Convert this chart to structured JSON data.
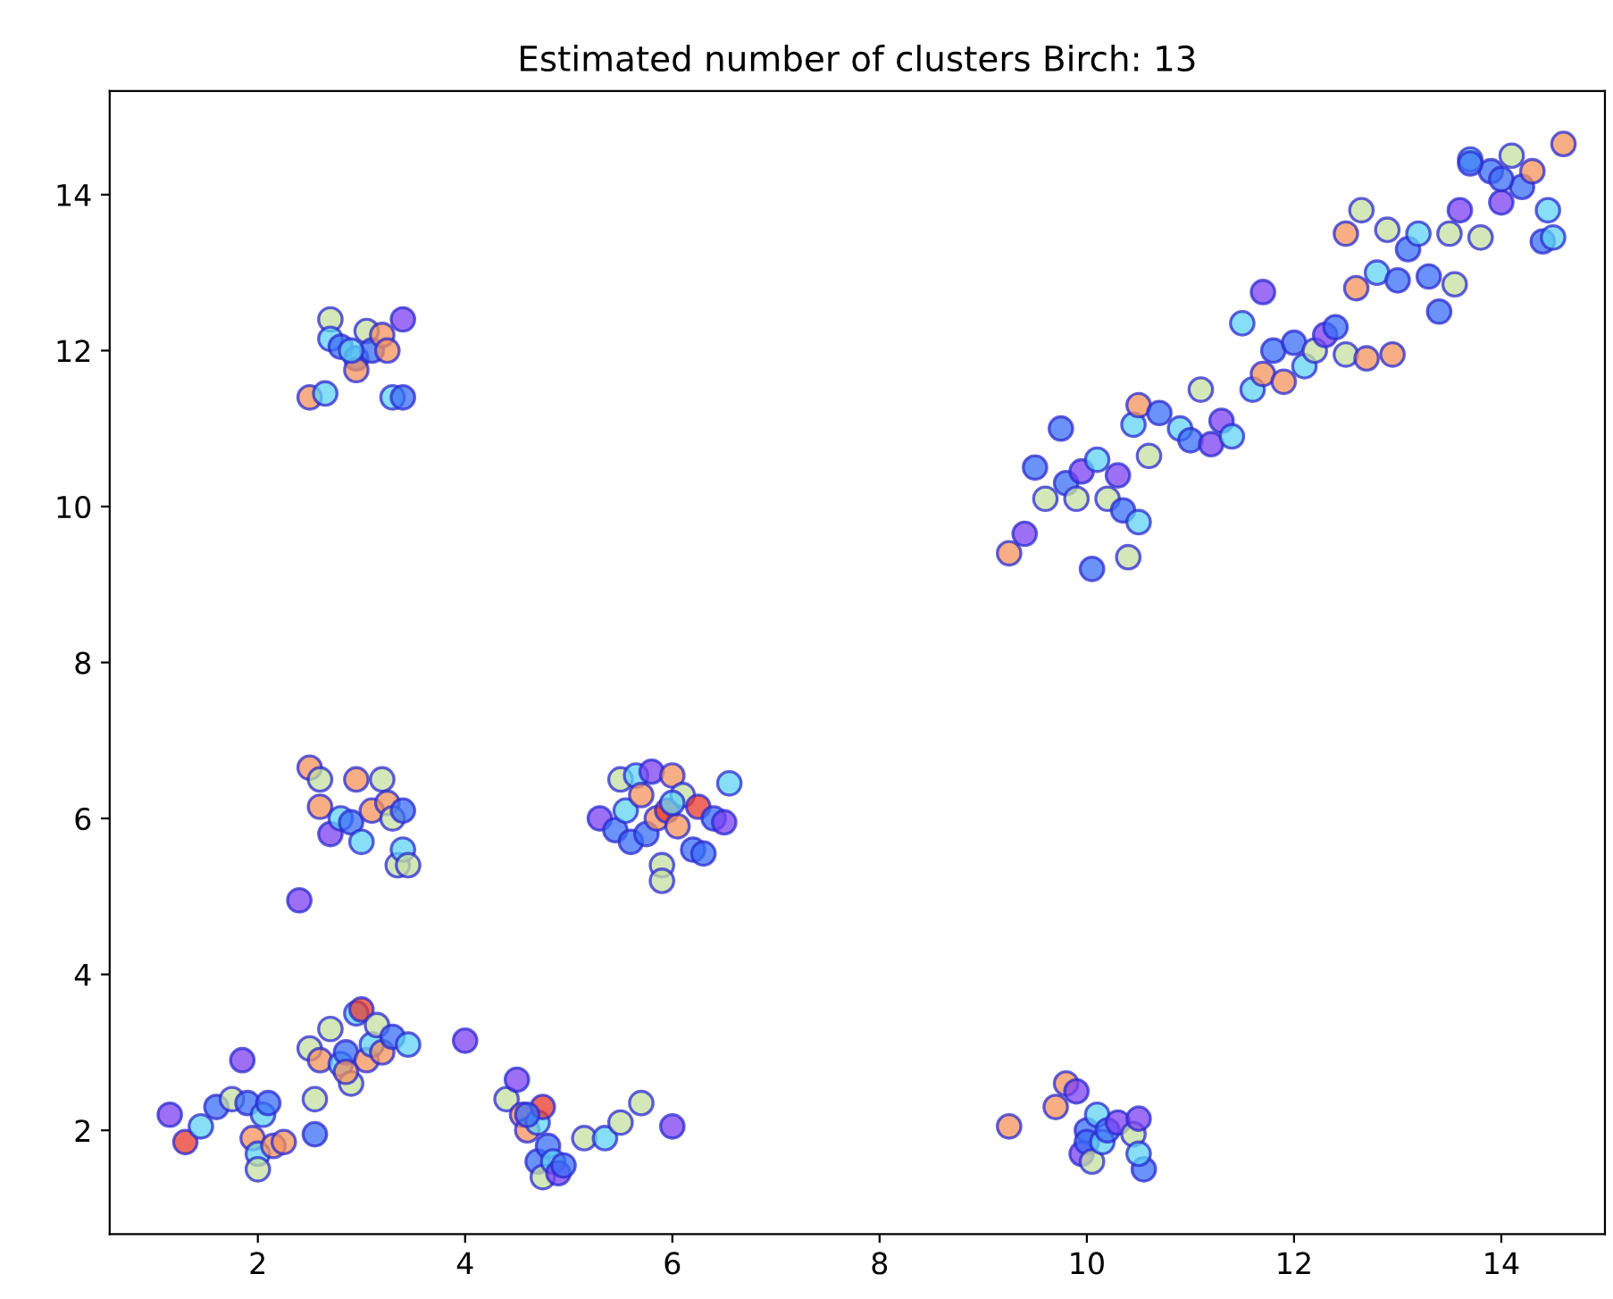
{
  "chart_data": {
    "type": "scatter",
    "title": "Estimated number of clusters Birch: 13",
    "xlim": [
      0.57,
      15.0
    ],
    "ylim": [
      0.67,
      15.33
    ],
    "xticks": [
      2,
      4,
      6,
      8,
      10,
      12,
      14
    ],
    "yticks": [
      2,
      4,
      6,
      8,
      10,
      12,
      14
    ],
    "grid": false,
    "marker": "circle",
    "series": [
      {
        "x": [
          2.5,
          2.65,
          2.7,
          2.7,
          2.8,
          2.95,
          2.95,
          3.05,
          3.1,
          3.2,
          3.25,
          3.3,
          3.4,
          3.4,
          2.9,
          2.5,
          2.6,
          2.6,
          2.7,
          2.8,
          2.9,
          2.95,
          3.0,
          3.1,
          3.2,
          3.25,
          3.3,
          3.35,
          3.4,
          3.45,
          3.4,
          2.4,
          5.3,
          5.45,
          5.5,
          5.55,
          5.6,
          5.65,
          5.7,
          5.75,
          5.8,
          5.85,
          5.9,
          5.9,
          5.95,
          6.0,
          6.05,
          6.1,
          6.2,
          6.25,
          6.3,
          6.4,
          6.5,
          6.55,
          6.0,
          2.5,
          2.55,
          2.6,
          2.7,
          2.8,
          2.85,
          2.9,
          2.95,
          3.0,
          3.05,
          3.1,
          3.15,
          3.2,
          3.3,
          3.45,
          2.55,
          4.0,
          2.85,
          1.15,
          1.3,
          1.45,
          1.6,
          1.75,
          1.85,
          1.9,
          1.95,
          2.0,
          2.0,
          2.05,
          2.1,
          2.15,
          2.25,
          4.4,
          4.5,
          4.55,
          4.6,
          4.7,
          4.75,
          4.7,
          4.75,
          4.8,
          4.85,
          4.9,
          4.95,
          5.15,
          5.35,
          5.5,
          5.7,
          6.0,
          4.6,
          9.25,
          9.7,
          9.8,
          9.9,
          9.95,
          10.0,
          10.0,
          10.05,
          10.1,
          10.15,
          10.2,
          10.3,
          10.45,
          10.5,
          10.55,
          10.5,
          9.25,
          9.4,
          9.5,
          9.6,
          9.75,
          9.8,
          9.9,
          9.95,
          10.05,
          10.1,
          10.2,
          10.3,
          10.35,
          10.4,
          10.45,
          10.5,
          10.5,
          10.6,
          10.7,
          10.9,
          11.0,
          11.1,
          11.2,
          11.3,
          11.4,
          11.5,
          11.6,
          11.7,
          11.7,
          11.8,
          11.9,
          12.0,
          12.1,
          12.2,
          12.3,
          12.4,
          12.5,
          12.5,
          12.6,
          12.65,
          12.7,
          12.8,
          12.9,
          12.95,
          13.0,
          13.1,
          13.2,
          13.3,
          13.4,
          13.5,
          13.55,
          13.6,
          13.7,
          13.8,
          13.9,
          14.0,
          14.1,
          14.2,
          14.3,
          14.4,
          14.45,
          14.5,
          14.6,
          14.0,
          13.7
        ],
        "values": [
          11.4,
          11.45,
          12.4,
          12.15,
          12.05,
          11.9,
          11.75,
          12.25,
          12.0,
          12.2,
          12.0,
          11.4,
          11.4,
          12.4,
          12.0,
          6.65,
          6.5,
          6.15,
          5.8,
          6.0,
          5.95,
          6.5,
          5.7,
          6.1,
          6.5,
          6.2,
          6.0,
          5.4,
          5.6,
          5.4,
          6.1,
          4.95,
          6.0,
          5.85,
          6.5,
          6.1,
          5.7,
          6.55,
          6.3,
          5.8,
          6.6,
          6.0,
          5.4,
          5.2,
          6.1,
          6.55,
          5.9,
          6.3,
          5.6,
          6.15,
          5.55,
          6.0,
          5.95,
          6.45,
          6.2,
          3.05,
          2.4,
          2.9,
          3.3,
          2.85,
          3.0,
          2.6,
          3.5,
          3.55,
          2.9,
          3.1,
          3.35,
          3.0,
          3.2,
          3.1,
          1.95,
          3.15,
          2.75,
          2.2,
          1.85,
          2.05,
          2.3,
          2.4,
          2.9,
          2.35,
          1.9,
          1.7,
          1.5,
          2.2,
          2.35,
          1.8,
          1.85,
          2.4,
          2.65,
          2.2,
          2.0,
          2.1,
          2.3,
          1.6,
          1.4,
          1.8,
          1.6,
          1.45,
          1.55,
          1.9,
          1.9,
          2.1,
          2.35,
          2.05,
          2.2,
          2.05,
          2.3,
          2.6,
          2.5,
          1.7,
          2.0,
          1.85,
          1.6,
          2.2,
          1.85,
          2.0,
          2.1,
          1.95,
          2.15,
          1.5,
          1.7,
          9.4,
          9.65,
          10.5,
          10.1,
          11.0,
          10.3,
          10.1,
          10.45,
          9.2,
          10.6,
          10.1,
          10.4,
          9.95,
          9.35,
          11.05,
          9.8,
          11.3,
          10.65,
          11.2,
          11.0,
          10.85,
          11.5,
          10.8,
          11.1,
          10.9,
          12.35,
          11.5,
          12.75,
          11.7,
          12.0,
          11.6,
          12.1,
          11.8,
          12.0,
          12.2,
          12.3,
          11.95,
          13.5,
          12.8,
          13.8,
          11.9,
          13.0,
          13.55,
          11.95,
          12.9,
          13.3,
          13.5,
          12.95,
          12.5,
          13.5,
          12.85,
          13.8,
          14.45,
          13.45,
          14.3,
          13.9,
          14.5,
          14.1,
          14.3,
          13.4,
          13.8,
          13.45,
          14.65,
          14.2,
          14.4
        ],
        "colors": [
          "#f4935c",
          "#5fd3f3",
          "#c6dfa0",
          "#5fd3f3",
          "#3a6ef5",
          "#3a6ef5",
          "#f4935c",
          "#c6dfa0",
          "#3a6ef5",
          "#f4935c",
          "#f4935c",
          "#5fd3f3",
          "#3a6ef5",
          "#7b3ff2",
          "#5fd3f3",
          "#f4935c",
          "#c6dfa0",
          "#f4935c",
          "#7b3ff2",
          "#5fd3f3",
          "#3a6ef5",
          "#f4935c",
          "#5fd3f3",
          "#f4935c",
          "#c6dfa0",
          "#f4935c",
          "#c6dfa0",
          "#c6dfa0",
          "#5fd3f3",
          "#c6dfa0",
          "#3a6ef5",
          "#7b3ff2",
          "#7b3ff2",
          "#3a6ef5",
          "#c6dfa0",
          "#5fd3f3",
          "#3a6ef5",
          "#5fd3f3",
          "#f4935c",
          "#3a6ef5",
          "#7b3ff2",
          "#f4935c",
          "#c6dfa0",
          "#c6dfa0",
          "#e8382c",
          "#f4935c",
          "#f4935c",
          "#c6dfa0",
          "#3a6ef5",
          "#e8382c",
          "#3a6ef5",
          "#3a6ef5",
          "#7b3ff2",
          "#5fd3f3",
          "#5fd3f3",
          "#c6dfa0",
          "#c6dfa0",
          "#f4935c",
          "#c6dfa0",
          "#5fd3f3",
          "#3a6ef5",
          "#c6dfa0",
          "#5fd3f3",
          "#e8382c",
          "#f4935c",
          "#5fd3f3",
          "#c6dfa0",
          "#f4935c",
          "#3a6ef5",
          "#5fd3f3",
          "#3a6ef5",
          "#7b3ff2",
          "#f4935c",
          "#7b3ff2",
          "#e8382c",
          "#5fd3f3",
          "#3a6ef5",
          "#c6dfa0",
          "#7b3ff2",
          "#3a6ef5",
          "#f4935c",
          "#5fd3f3",
          "#c6dfa0",
          "#5fd3f3",
          "#3a6ef5",
          "#f4935c",
          "#f4935c",
          "#c6dfa0",
          "#7b3ff2",
          "#f4935c",
          "#f4935c",
          "#5fd3f3",
          "#e8382c",
          "#3a6ef5",
          "#c6dfa0",
          "#3a6ef5",
          "#5fd3f3",
          "#7b3ff2",
          "#3a6ef5",
          "#c6dfa0",
          "#5fd3f3",
          "#c6dfa0",
          "#c6dfa0",
          "#7b3ff2",
          "#3a6ef5",
          "#f4935c",
          "#f4935c",
          "#f4935c",
          "#7b3ff2",
          "#7b3ff2",
          "#3a6ef5",
          "#3a6ef5",
          "#c6dfa0",
          "#5fd3f3",
          "#5fd3f3",
          "#3a6ef5",
          "#7b3ff2",
          "#c6dfa0",
          "#7b3ff2",
          "#3a6ef5",
          "#5fd3f3",
          "#f4935c",
          "#7b3ff2",
          "#3a6ef5",
          "#c6dfa0",
          "#3a6ef5",
          "#3a6ef5",
          "#c6dfa0",
          "#7b3ff2",
          "#3a6ef5",
          "#5fd3f3",
          "#c6dfa0",
          "#7b3ff2",
          "#3a6ef5",
          "#c6dfa0",
          "#5fd3f3",
          "#5fd3f3",
          "#f4935c",
          "#c6dfa0",
          "#3a6ef5",
          "#5fd3f3",
          "#3a6ef5",
          "#c6dfa0",
          "#7b3ff2",
          "#7b3ff2",
          "#5fd3f3",
          "#5fd3f3",
          "#5fd3f3",
          "#7b3ff2",
          "#f4935c",
          "#3a6ef5",
          "#f4935c",
          "#3a6ef5",
          "#5fd3f3",
          "#c6dfa0",
          "#7b3ff2",
          "#3a6ef5",
          "#c6dfa0",
          "#f4935c",
          "#f4935c",
          "#c6dfa0",
          "#f4935c",
          "#5fd3f3",
          "#c6dfa0",
          "#f4935c",
          "#3a6ef5",
          "#3a6ef5",
          "#5fd3f3",
          "#3a6ef5",
          "#3a6ef5",
          "#c6dfa0",
          "#c6dfa0",
          "#7b3ff2",
          "#5fd3f3",
          "#c6dfa0",
          "#3a6ef5",
          "#7b3ff2",
          "#c6dfa0",
          "#3a6ef5",
          "#f4935c",
          "#3a6ef5",
          "#5fd3f3",
          "#5fd3f3",
          "#f4935c",
          "#3a6ef5",
          "#3a6ef5"
        ]
      }
    ]
  }
}
